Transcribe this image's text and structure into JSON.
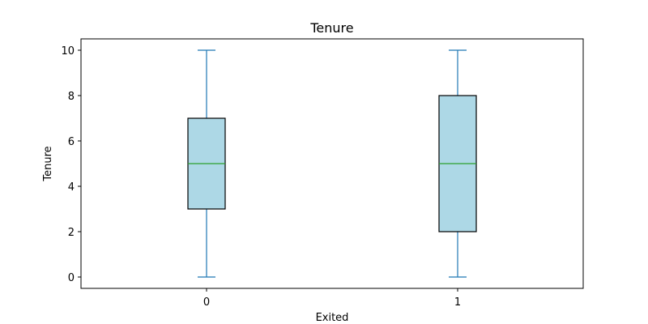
{
  "chart_data": {
    "type": "box",
    "title": "Tenure",
    "xlabel": "Exited",
    "ylabel": "Tenure",
    "ylim": [
      -0.5,
      10.5
    ],
    "yticks": [
      0,
      2,
      4,
      6,
      8,
      10
    ],
    "categories": [
      "0",
      "1"
    ],
    "boxes": [
      {
        "category": "0",
        "whisker_low": 0,
        "q1": 3,
        "median": 5,
        "q3": 7,
        "whisker_high": 10
      },
      {
        "category": "1",
        "whisker_low": 0,
        "q1": 2,
        "median": 5,
        "q3": 8,
        "whisker_high": 10
      }
    ],
    "grid": false,
    "colors": {
      "box_fill": "#add8e6",
      "box_edge": "#000000",
      "whisker": "#1f77b4",
      "median": "#2ca02c",
      "axes": "#000000"
    }
  }
}
